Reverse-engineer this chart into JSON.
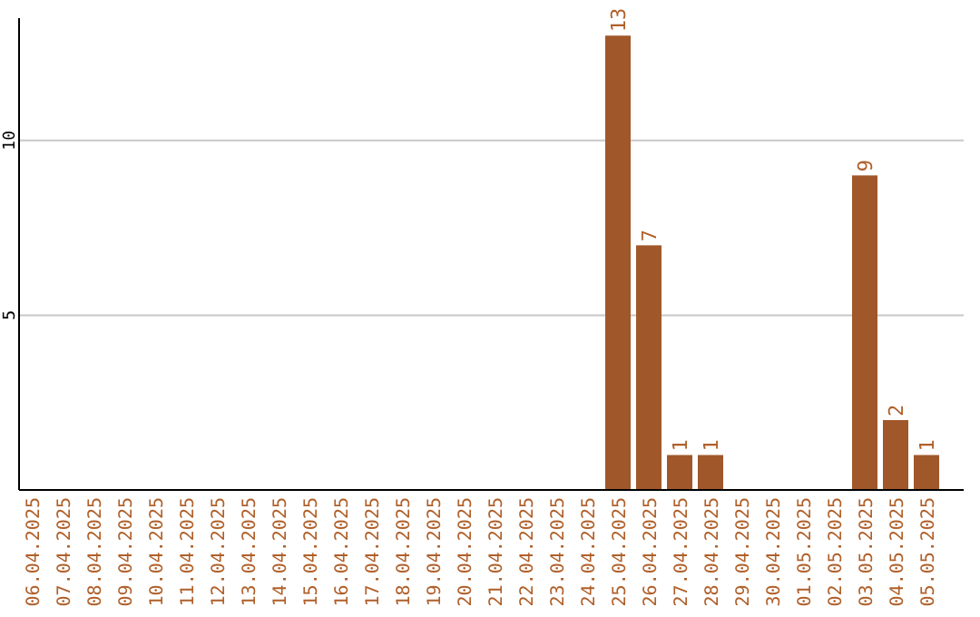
{
  "chart_data": {
    "type": "bar",
    "categories": [
      "06.04.2025",
      "07.04.2025",
      "08.04.2025",
      "09.04.2025",
      "10.04.2025",
      "11.04.2025",
      "12.04.2025",
      "13.04.2025",
      "14.04.2025",
      "15.04.2025",
      "16.04.2025",
      "17.04.2025",
      "18.04.2025",
      "19.04.2025",
      "20.04.2025",
      "21.04.2025",
      "22.04.2025",
      "23.04.2025",
      "24.04.2025",
      "25.04.2025",
      "26.04.2025",
      "27.04.2025",
      "28.04.2025",
      "29.04.2025",
      "30.04.2025",
      "01.05.2025",
      "02.05.2025",
      "03.05.2025",
      "04.05.2025",
      "05.05.2025"
    ],
    "values": [
      0,
      0,
      0,
      0,
      0,
      0,
      0,
      0,
      0,
      0,
      0,
      0,
      0,
      0,
      0,
      0,
      0,
      0,
      0,
      13,
      7,
      1,
      1,
      0,
      0,
      0,
      0,
      9,
      2,
      1
    ],
    "value_labels": [
      null,
      null,
      null,
      null,
      null,
      null,
      null,
      null,
      null,
      null,
      null,
      null,
      null,
      null,
      null,
      null,
      null,
      null,
      null,
      "13",
      "7",
      "1",
      "1",
      null,
      null,
      null,
      null,
      "9",
      "2",
      "1"
    ],
    "color": "#a0572a",
    "ylim": [
      0,
      13.5
    ],
    "yticks": [
      5,
      10
    ],
    "grid": "y"
  }
}
